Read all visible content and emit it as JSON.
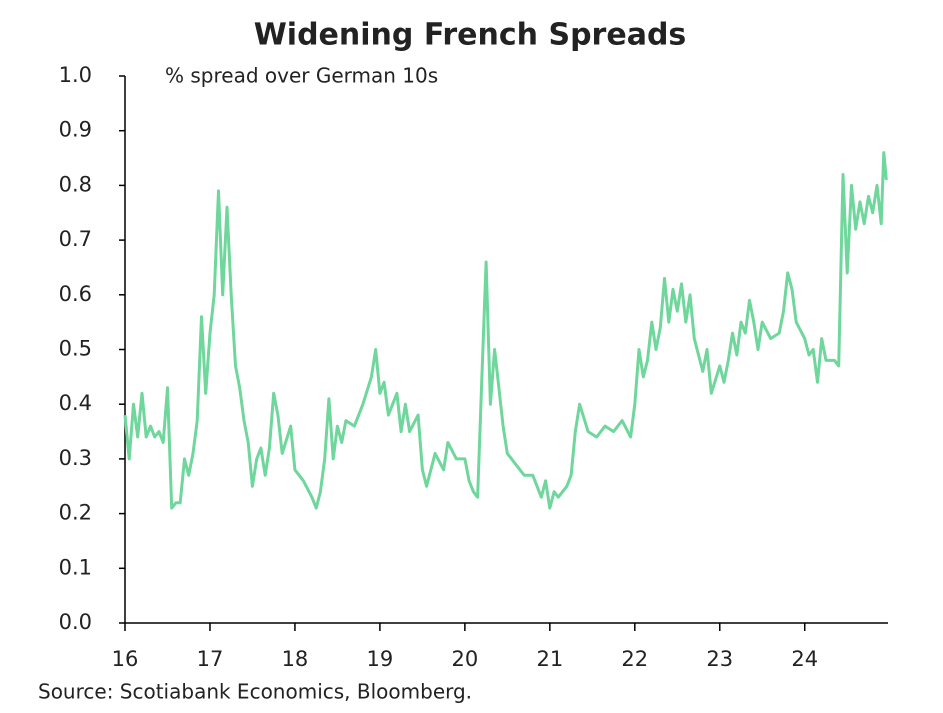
{
  "chart_data": {
    "type": "line",
    "title": "Widening French Spreads",
    "subtitle": "% spread over German 10s",
    "source": "Source: Scotiabank Economics, Bloomberg.",
    "x": [
      16.0,
      16.05,
      16.1,
      16.15,
      16.2,
      16.25,
      16.3,
      16.35,
      16.4,
      16.45,
      16.5,
      16.55,
      16.6,
      16.65,
      16.7,
      16.75,
      16.8,
      16.85,
      16.9,
      16.95,
      17.0,
      17.05,
      17.1,
      17.15,
      17.2,
      17.25,
      17.3,
      17.35,
      17.4,
      17.45,
      17.5,
      17.55,
      17.6,
      17.65,
      17.7,
      17.75,
      17.8,
      17.85,
      17.95,
      18.0,
      18.1,
      18.2,
      18.25,
      18.3,
      18.35,
      18.4,
      18.45,
      18.5,
      18.55,
      18.6,
      18.7,
      18.8,
      18.9,
      18.95,
      19.0,
      19.05,
      19.1,
      19.2,
      19.25,
      19.3,
      19.35,
      19.45,
      19.5,
      19.55,
      19.65,
      19.75,
      19.8,
      19.9,
      20.0,
      20.05,
      20.1,
      20.15,
      20.2,
      20.25,
      20.3,
      20.35,
      20.4,
      20.45,
      20.5,
      20.6,
      20.7,
      20.8,
      20.9,
      20.95,
      21.0,
      21.05,
      21.1,
      21.2,
      21.25,
      21.3,
      21.35,
      21.45,
      21.55,
      21.65,
      21.75,
      21.85,
      21.95,
      22.0,
      22.05,
      22.1,
      22.15,
      22.2,
      22.25,
      22.3,
      22.35,
      22.4,
      22.45,
      22.5,
      22.55,
      22.6,
      22.65,
      22.7,
      22.8,
      22.85,
      22.9,
      23.0,
      23.05,
      23.1,
      23.15,
      23.2,
      23.25,
      23.3,
      23.35,
      23.4,
      23.45,
      23.5,
      23.6,
      23.7,
      23.75,
      23.8,
      23.85,
      23.9,
      24.0,
      24.05,
      24.1,
      24.15,
      24.2,
      24.25,
      24.35,
      24.4,
      24.45,
      24.5,
      24.55,
      24.6,
      24.65,
      24.7,
      24.75,
      24.8,
      24.85,
      24.9,
      24.93,
      24.96
    ],
    "values": [
      0.38,
      0.3,
      0.4,
      0.34,
      0.42,
      0.34,
      0.36,
      0.34,
      0.35,
      0.33,
      0.43,
      0.21,
      0.22,
      0.22,
      0.3,
      0.27,
      0.31,
      0.37,
      0.56,
      0.42,
      0.53,
      0.6,
      0.79,
      0.6,
      0.76,
      0.6,
      0.47,
      0.43,
      0.37,
      0.33,
      0.25,
      0.3,
      0.32,
      0.27,
      0.32,
      0.42,
      0.38,
      0.31,
      0.36,
      0.28,
      0.26,
      0.23,
      0.21,
      0.24,
      0.3,
      0.41,
      0.3,
      0.36,
      0.33,
      0.37,
      0.36,
      0.4,
      0.45,
      0.5,
      0.42,
      0.44,
      0.38,
      0.42,
      0.35,
      0.4,
      0.35,
      0.38,
      0.28,
      0.25,
      0.31,
      0.28,
      0.33,
      0.3,
      0.3,
      0.26,
      0.24,
      0.23,
      0.45,
      0.66,
      0.4,
      0.5,
      0.43,
      0.36,
      0.31,
      0.29,
      0.27,
      0.27,
      0.23,
      0.26,
      0.21,
      0.24,
      0.23,
      0.25,
      0.27,
      0.35,
      0.4,
      0.35,
      0.34,
      0.36,
      0.35,
      0.37,
      0.34,
      0.4,
      0.5,
      0.45,
      0.48,
      0.55,
      0.5,
      0.54,
      0.63,
      0.55,
      0.61,
      0.57,
      0.62,
      0.55,
      0.6,
      0.52,
      0.46,
      0.5,
      0.42,
      0.47,
      0.44,
      0.48,
      0.53,
      0.49,
      0.55,
      0.53,
      0.59,
      0.55,
      0.5,
      0.55,
      0.52,
      0.53,
      0.57,
      0.64,
      0.61,
      0.55,
      0.52,
      0.49,
      0.5,
      0.44,
      0.52,
      0.48,
      0.48,
      0.47,
      0.82,
      0.64,
      0.8,
      0.72,
      0.77,
      0.73,
      0.78,
      0.75,
      0.8,
      0.73,
      0.86,
      0.81
    ],
    "color": "#6fd69c",
    "xlim": [
      16,
      24.98
    ],
    "xticks": [
      16,
      17,
      18,
      19,
      20,
      21,
      22,
      23,
      24
    ],
    "ylim": [
      0,
      1
    ],
    "yticks": [
      {
        "value": 0,
        "label": "0.0"
      },
      0.1,
      0.2,
      0.3,
      0.4,
      0.5,
      0.6,
      0.7,
      0.8,
      0.9,
      {
        "value": 1,
        "label": "1.0"
      }
    ],
    "grid": false
  }
}
